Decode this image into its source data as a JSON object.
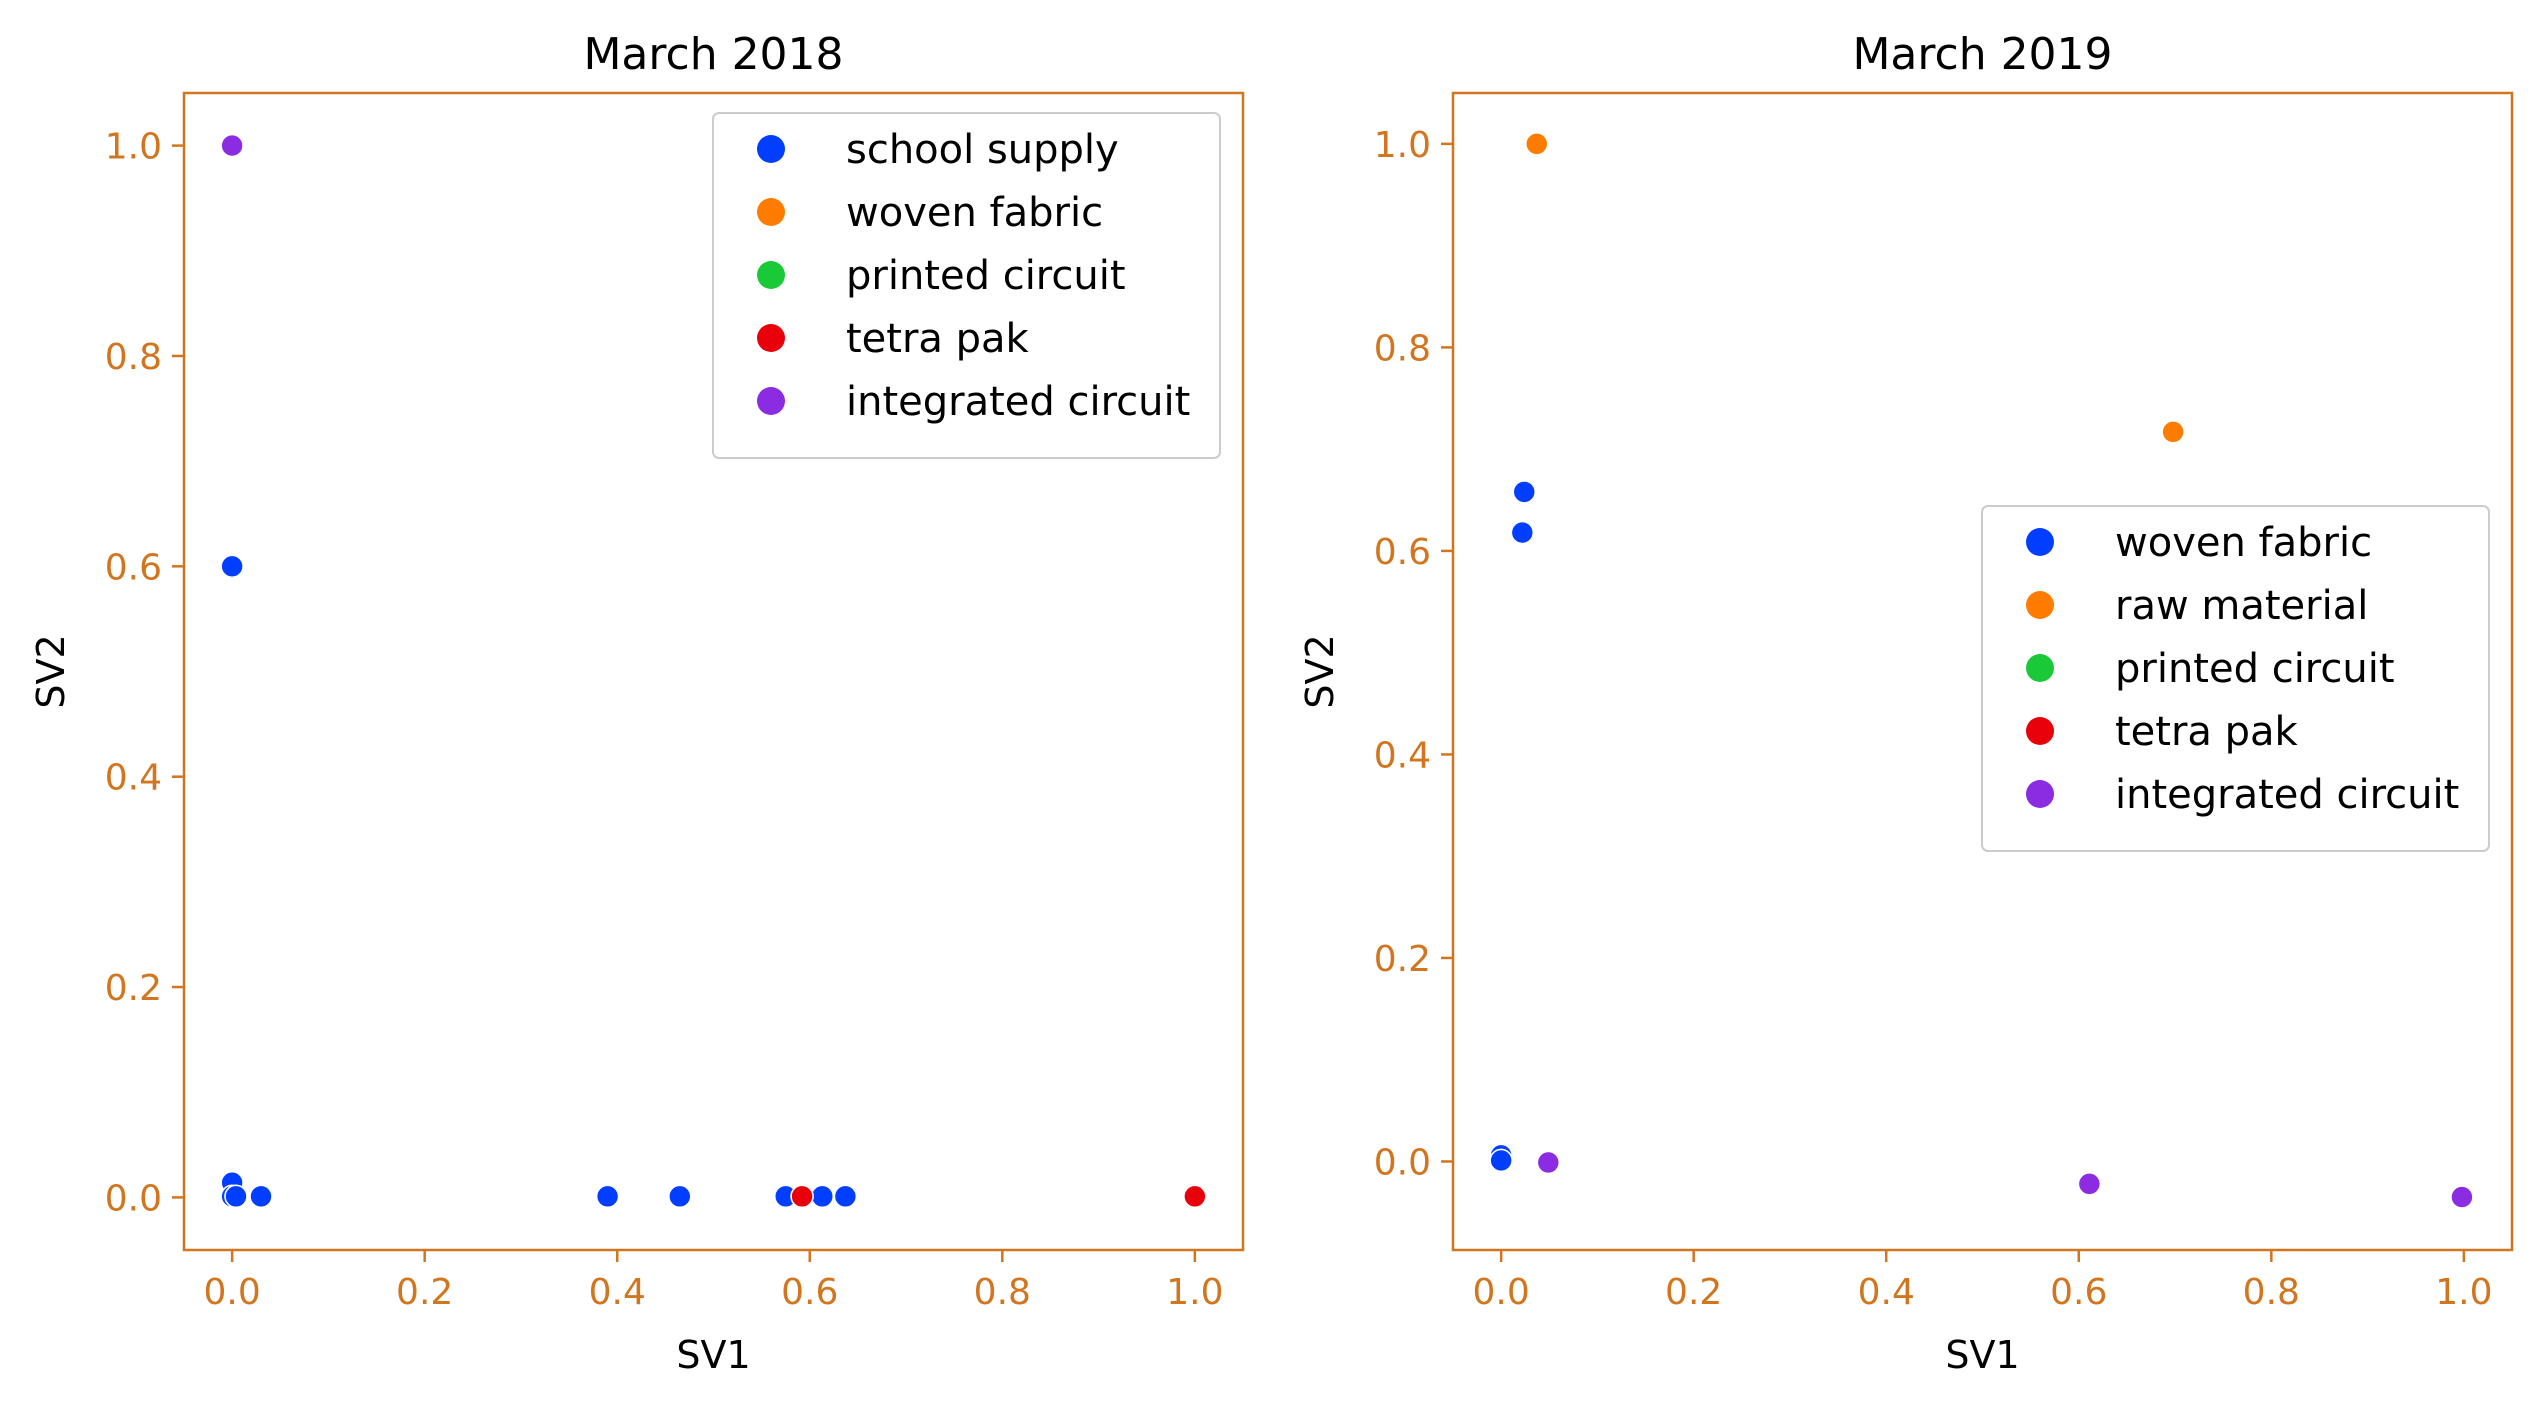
{
  "figure": {
    "background": "#ffffff",
    "axis_color": "#d2751f"
  },
  "chart_data": [
    {
      "type": "scatter",
      "title": "March 2018",
      "xlabel": "SV1",
      "ylabel": "SV2",
      "xlim": [
        -0.05,
        1.05
      ],
      "ylim": [
        -0.05,
        1.05
      ],
      "xticks": [
        0.0,
        0.2,
        0.4,
        0.6,
        0.8,
        1.0
      ],
      "xtick_labels": [
        "0.0",
        "0.2",
        "0.4",
        "0.6",
        "0.8",
        "1.0"
      ],
      "yticks": [
        0.0,
        0.2,
        0.4,
        0.6,
        0.8,
        1.0
      ],
      "ytick_labels": [
        "0.0",
        "0.2",
        "0.4",
        "0.6",
        "0.8",
        "1.0"
      ],
      "grid": false,
      "legend_position": "top-right",
      "series": [
        {
          "name": "school supply",
          "color": "#023eff",
          "points": [
            [
              0.0,
              0.6
            ],
            [
              0.0,
              0.014
            ],
            [
              0.0,
              0.001
            ],
            [
              0.004,
              0.001
            ],
            [
              0.03,
              0.001
            ],
            [
              0.39,
              0.001
            ],
            [
              0.465,
              0.001
            ],
            [
              0.575,
              0.001
            ],
            [
              0.613,
              0.001
            ],
            [
              0.637,
              0.001
            ]
          ]
        },
        {
          "name": "woven fabric",
          "color": "#ff7c00",
          "points": []
        },
        {
          "name": "printed circuit",
          "color": "#1ac938",
          "points": []
        },
        {
          "name": "tetra pak",
          "color": "#e8000b",
          "points": [
            [
              0.592,
              0.001
            ],
            [
              1.0,
              0.001
            ]
          ]
        },
        {
          "name": "integrated circuit",
          "color": "#8b2be2",
          "points": [
            [
              0.0,
              1.0
            ]
          ]
        }
      ]
    },
    {
      "type": "scatter",
      "title": "March 2019",
      "xlabel": "SV1",
      "ylabel": "SV2",
      "xlim": [
        -0.05,
        1.05
      ],
      "ylim": [
        -0.087,
        1.05
      ],
      "xticks": [
        0.0,
        0.2,
        0.4,
        0.6,
        0.8,
        1.0
      ],
      "xtick_labels": [
        "0.0",
        "0.2",
        "0.4",
        "0.6",
        "0.8",
        "1.0"
      ],
      "yticks": [
        0.0,
        0.2,
        0.4,
        0.6,
        0.8,
        1.0
      ],
      "ytick_labels": [
        "0.0",
        "0.2",
        "0.4",
        "0.6",
        "0.8",
        "1.0"
      ],
      "grid": false,
      "legend_position": "center-right",
      "series": [
        {
          "name": "woven fabric",
          "color": "#023eff",
          "points": [
            [
              0.024,
              0.658
            ],
            [
              0.022,
              0.618
            ],
            [
              0.0,
              0.006
            ],
            [
              0.0,
              0.001
            ]
          ]
        },
        {
          "name": "raw material",
          "color": "#ff7c00",
          "points": [
            [
              0.037,
              1.0
            ],
            [
              0.698,
              0.717
            ]
          ]
        },
        {
          "name": "printed circuit",
          "color": "#1ac938",
          "points": []
        },
        {
          "name": "tetra pak",
          "color": "#e8000b",
          "points": []
        },
        {
          "name": "integrated circuit",
          "color": "#8b2be2",
          "points": [
            [
              0.049,
              -0.001
            ],
            [
              0.611,
              -0.022
            ],
            [
              0.998,
              -0.035
            ]
          ]
        }
      ]
    }
  ]
}
